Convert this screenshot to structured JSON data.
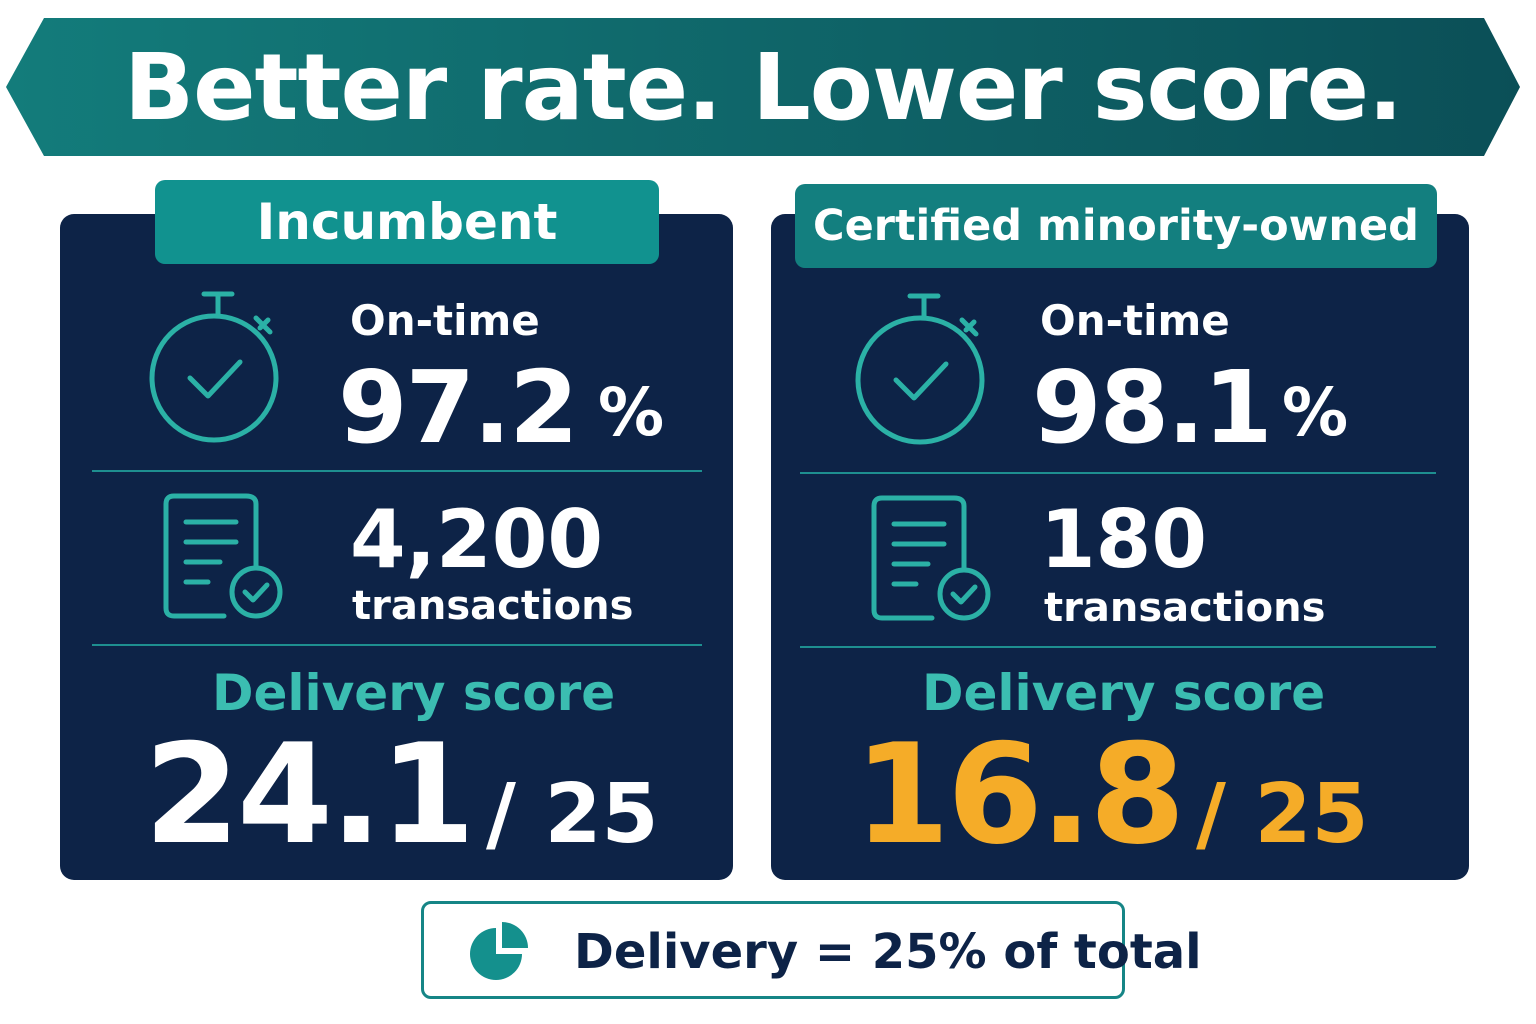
{
  "header": {
    "title": "Better rate. Lower score."
  },
  "incumbent": {
    "tab_label": "Incumbent",
    "ontime_label": "On-time",
    "ontime_value": "97.2",
    "ontime_unit": "%",
    "transactions_value": "4,200",
    "transactions_label": "transactions",
    "score_label": "Delivery score",
    "score_value": "24.1",
    "score_max": "/ 25"
  },
  "minority_owned": {
    "tab_label": "Certified minority-owned",
    "ontime_label": "On-time",
    "ontime_value": "98.1",
    "ontime_unit": "%",
    "transactions_value": "180",
    "transactions_label": "transactions",
    "score_label": "Delivery score",
    "score_value": "16.8",
    "score_max": "/ 25"
  },
  "footer": {
    "note": "Delivery = 25% of total"
  },
  "icons": [
    "stopwatch-check-icon",
    "document-check-icon",
    "pie-chart-icon"
  ],
  "colors": {
    "banner": "#0f6f70",
    "card": "#0d2347",
    "accent_teal": "#3bbdb1",
    "highlight_orange": "#f5ac28"
  }
}
